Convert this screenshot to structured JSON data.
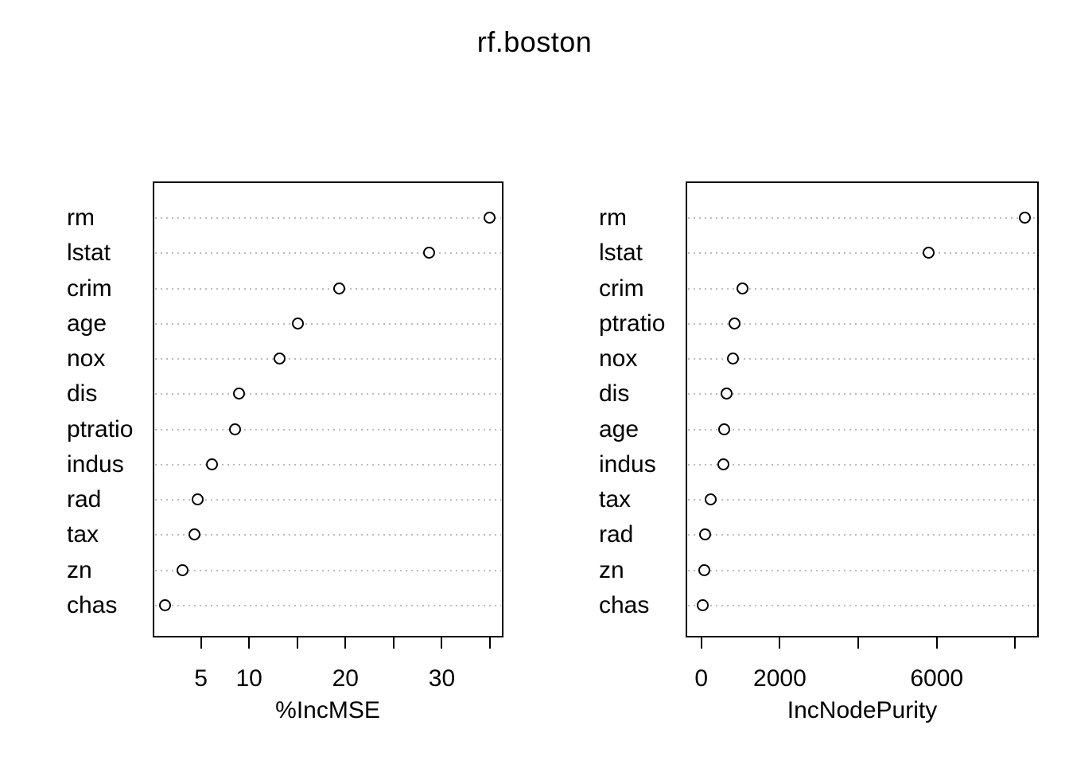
{
  "figure": {
    "title": "rf.boston"
  },
  "chart_data": [
    {
      "type": "scatter",
      "subtype": "dot-chart",
      "title": "rf.boston",
      "xlabel": "%IncMSE",
      "ylabel": "",
      "categories": [
        "rm",
        "lstat",
        "crim",
        "age",
        "nox",
        "dis",
        "ptratio",
        "indus",
        "rad",
        "tax",
        "zn",
        "chas"
      ],
      "values": [
        35.0,
        28.7,
        19.4,
        15.1,
        13.2,
        9.0,
        8.6,
        6.2,
        4.7,
        4.4,
        3.1,
        1.3
      ],
      "xlim": [
        0,
        36.4
      ],
      "xtick_values": [
        5,
        10,
        15,
        20,
        25,
        30,
        35
      ],
      "xtick_labels": [
        "5",
        "10",
        "",
        "20",
        "",
        "30",
        ""
      ],
      "grid": "horizontal dotted gray",
      "legend": "none",
      "point_style": "hollow black circle"
    },
    {
      "type": "scatter",
      "subtype": "dot-chart",
      "title": "rf.boston",
      "xlabel": "IncNodePurity",
      "ylabel": "",
      "categories": [
        "rm",
        "lstat",
        "crim",
        "ptratio",
        "nox",
        "dis",
        "age",
        "indus",
        "tax",
        "rad",
        "zn",
        "chas"
      ],
      "values": [
        8260,
        5810,
        1050,
        860,
        820,
        660,
        600,
        575,
        240,
        100,
        80,
        40
      ],
      "xlim": [
        -400,
        8600
      ],
      "xtick_values": [
        0,
        2000,
        4000,
        6000,
        8000
      ],
      "xtick_labels": [
        "0",
        "2000",
        "",
        "6000",
        ""
      ],
      "grid": "horizontal dotted gray",
      "legend": "none",
      "point_style": "hollow black circle"
    }
  ],
  "colors": {
    "background": "#ffffff",
    "foreground": "#000000",
    "gridline": "#bdbdbd"
  }
}
